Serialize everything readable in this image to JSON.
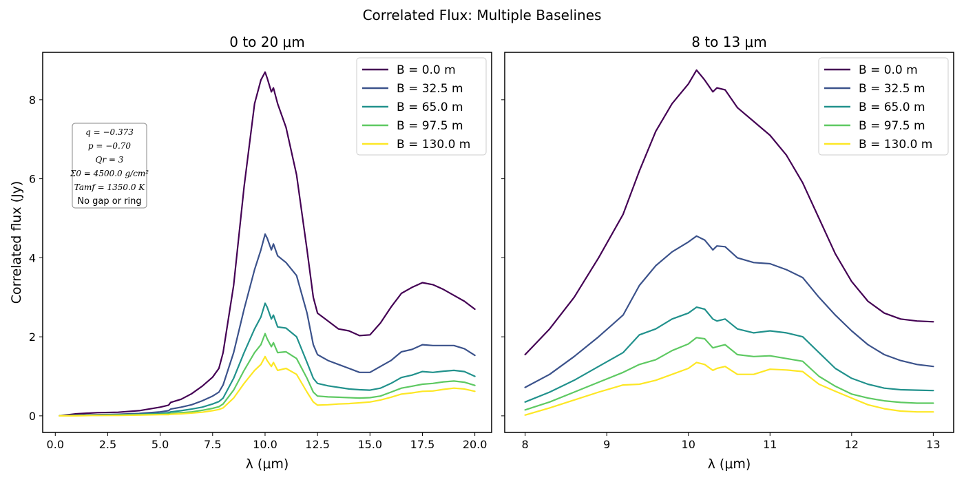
{
  "figure": {
    "suptitle": "Correlated Flux: Multiple Baselines"
  },
  "colors": {
    "series": [
      "#440154",
      "#3b528b",
      "#21918c",
      "#5ec962",
      "#fde725"
    ]
  },
  "chart_data": [
    {
      "type": "line",
      "title": "0 to 20 μm",
      "xlabel": "λ (μm)",
      "ylabel": "Correlated flux (Jy)",
      "xlim": [
        -0.6,
        20.8
      ],
      "ylim": [
        -0.42,
        9.2
      ],
      "xticks": [
        0,
        2.5,
        5,
        7.5,
        10,
        12.5,
        15,
        17.5,
        20
      ],
      "xtick_labels": [
        "0.0",
        "2.5",
        "5.0",
        "7.5",
        "10.0",
        "12.5",
        "15.0",
        "17.5",
        "20.0"
      ],
      "yticks": [
        0,
        2,
        4,
        6,
        8
      ],
      "ytick_labels": [
        "0",
        "2",
        "4",
        "6",
        "8"
      ],
      "legend_position": "top-right",
      "annotation": [
        "q = −0.373",
        "p = −0.70",
        "Qr = 3",
        "Σ0 = 4500.0 g/cm²",
        "Tamf = 1350.0 K",
        "No gap or ring"
      ],
      "series": [
        {
          "name": "B = 0.0 m",
          "x": [
            0.2,
            1,
            2,
            3,
            4,
            5,
            5.4,
            5.5,
            6,
            6.5,
            7,
            7.5,
            7.8,
            8,
            8.5,
            9,
            9.5,
            9.8,
            10,
            10.1,
            10.3,
            10.4,
            10.6,
            11,
            11.5,
            12,
            12.3,
            12.5,
            13,
            13.5,
            14,
            14.5,
            15,
            15.5,
            16,
            16.5,
            17,
            17.5,
            18,
            18.5,
            19,
            19.5,
            20
          ],
          "y": [
            0,
            0.05,
            0.08,
            0.09,
            0.13,
            0.22,
            0.27,
            0.34,
            0.42,
            0.56,
            0.75,
            0.98,
            1.2,
            1.6,
            3.3,
            5.8,
            7.9,
            8.5,
            8.7,
            8.55,
            8.2,
            8.3,
            7.9,
            7.3,
            6.1,
            4.2,
            3.0,
            2.6,
            2.4,
            2.2,
            2.15,
            2.03,
            2.05,
            2.35,
            2.75,
            3.1,
            3.25,
            3.37,
            3.32,
            3.2,
            3.05,
            2.9,
            2.7
          ]
        },
        {
          "name": "B = 32.5 m",
          "x": [
            0.2,
            1,
            2,
            3,
            4,
            5,
            5.4,
            5.5,
            6,
            6.5,
            7,
            7.5,
            7.8,
            8,
            8.5,
            9,
            9.5,
            9.8,
            10,
            10.1,
            10.3,
            10.4,
            10.6,
            11,
            11.5,
            12,
            12.3,
            12.5,
            13,
            13.5,
            14,
            14.5,
            15,
            15.5,
            16,
            16.5,
            17,
            17.5,
            18,
            18.5,
            19,
            19.5,
            20
          ],
          "y": [
            0,
            0.02,
            0.03,
            0.04,
            0.06,
            0.1,
            0.13,
            0.17,
            0.22,
            0.28,
            0.38,
            0.5,
            0.6,
            0.78,
            1.6,
            2.7,
            3.7,
            4.2,
            4.6,
            4.5,
            4.2,
            4.35,
            4.05,
            3.88,
            3.55,
            2.6,
            1.8,
            1.55,
            1.4,
            1.3,
            1.2,
            1.1,
            1.1,
            1.25,
            1.4,
            1.62,
            1.68,
            1.8,
            1.78,
            1.78,
            1.78,
            1.7,
            1.53
          ]
        },
        {
          "name": "B = 65.0 m",
          "x": [
            0.2,
            1,
            2,
            3,
            4,
            5,
            5.4,
            5.5,
            6,
            6.5,
            7,
            7.5,
            7.8,
            8,
            8.5,
            9,
            9.5,
            9.8,
            10,
            10.1,
            10.3,
            10.4,
            10.6,
            11,
            11.5,
            12,
            12.3,
            12.5,
            13,
            13.5,
            14,
            14.5,
            15,
            15.5,
            16,
            16.5,
            17,
            17.5,
            18,
            18.5,
            19,
            19.5,
            20
          ],
          "y": [
            0,
            0.01,
            0.02,
            0.03,
            0.04,
            0.06,
            0.08,
            0.1,
            0.13,
            0.17,
            0.22,
            0.3,
            0.36,
            0.45,
            0.95,
            1.6,
            2.2,
            2.5,
            2.85,
            2.75,
            2.45,
            2.55,
            2.25,
            2.22,
            2.0,
            1.35,
            0.95,
            0.82,
            0.76,
            0.72,
            0.68,
            0.66,
            0.65,
            0.7,
            0.82,
            0.97,
            1.03,
            1.12,
            1.1,
            1.13,
            1.15,
            1.12,
            1.0
          ]
        },
        {
          "name": "B = 97.5 m",
          "x": [
            0.2,
            1,
            2,
            3,
            4,
            5,
            5.4,
            5.5,
            6,
            6.5,
            7,
            7.5,
            7.8,
            8,
            8.5,
            9,
            9.5,
            9.8,
            10,
            10.1,
            10.3,
            10.4,
            10.6,
            11,
            11.5,
            12,
            12.3,
            12.5,
            13,
            13.5,
            14,
            14.5,
            15,
            15.5,
            16,
            16.5,
            17,
            17.5,
            18,
            18.5,
            19,
            19.5,
            20
          ],
          "y": [
            0,
            0.01,
            0.01,
            0.02,
            0.03,
            0.04,
            0.05,
            0.06,
            0.08,
            0.1,
            0.14,
            0.19,
            0.23,
            0.3,
            0.65,
            1.15,
            1.6,
            1.8,
            2.08,
            1.95,
            1.75,
            1.85,
            1.6,
            1.62,
            1.45,
            0.95,
            0.6,
            0.5,
            0.48,
            0.47,
            0.46,
            0.45,
            0.46,
            0.5,
            0.6,
            0.7,
            0.75,
            0.8,
            0.82,
            0.86,
            0.88,
            0.85,
            0.77
          ]
        },
        {
          "name": "B = 130.0 m",
          "x": [
            0.2,
            1,
            2,
            3,
            4,
            5,
            5.4,
            5.5,
            6,
            6.5,
            7,
            7.5,
            7.8,
            8,
            8.5,
            9,
            9.5,
            9.8,
            10,
            10.1,
            10.3,
            10.4,
            10.6,
            11,
            11.5,
            12,
            12.3,
            12.5,
            13,
            13.5,
            14,
            14.5,
            15,
            15.5,
            16,
            16.5,
            17,
            17.5,
            18,
            18.5,
            19,
            19.5,
            20
          ],
          "y": [
            0,
            0,
            0.01,
            0.01,
            0.02,
            0.03,
            0.03,
            0.04,
            0.05,
            0.07,
            0.09,
            0.13,
            0.16,
            0.2,
            0.45,
            0.82,
            1.15,
            1.3,
            1.5,
            1.4,
            1.25,
            1.35,
            1.15,
            1.2,
            1.05,
            0.6,
            0.35,
            0.27,
            0.28,
            0.3,
            0.31,
            0.33,
            0.35,
            0.4,
            0.47,
            0.55,
            0.58,
            0.62,
            0.63,
            0.67,
            0.7,
            0.68,
            0.62
          ]
        }
      ]
    },
    {
      "type": "line",
      "title": "8 to 13 μm",
      "xlabel": "λ (μm)",
      "ylabel": "",
      "xlim": [
        7.75,
        13.25
      ],
      "ylim": [
        -0.42,
        9.2
      ],
      "xticks": [
        8,
        9,
        10,
        11,
        12,
        13
      ],
      "xtick_labels": [
        "8",
        "9",
        "10",
        "11",
        "12",
        "13"
      ],
      "yticks": [
        0,
        2,
        4,
        6,
        8
      ],
      "ytick_labels": [],
      "legend_position": "top-right",
      "series": [
        {
          "name": "B = 0.0 m",
          "x": [
            8,
            8.3,
            8.6,
            8.9,
            9.2,
            9.4,
            9.6,
            9.8,
            10,
            10.1,
            10.2,
            10.3,
            10.35,
            10.45,
            10.6,
            10.8,
            11,
            11.2,
            11.4,
            11.6,
            11.8,
            12,
            12.2,
            12.4,
            12.6,
            12.8,
            13
          ],
          "y": [
            1.55,
            2.2,
            3.0,
            4.0,
            5.1,
            6.2,
            7.2,
            7.9,
            8.4,
            8.75,
            8.5,
            8.2,
            8.3,
            8.25,
            7.8,
            7.45,
            7.1,
            6.6,
            5.9,
            5.0,
            4.1,
            3.4,
            2.9,
            2.6,
            2.45,
            2.4,
            2.38
          ]
        },
        {
          "name": "B = 32.5 m",
          "x": [
            8,
            8.3,
            8.6,
            8.9,
            9.2,
            9.4,
            9.6,
            9.8,
            10,
            10.1,
            10.2,
            10.3,
            10.35,
            10.45,
            10.6,
            10.8,
            11,
            11.2,
            11.4,
            11.6,
            11.8,
            12,
            12.2,
            12.4,
            12.6,
            12.8,
            13
          ],
          "y": [
            0.72,
            1.05,
            1.5,
            2.0,
            2.55,
            3.3,
            3.8,
            4.15,
            4.4,
            4.55,
            4.45,
            4.2,
            4.3,
            4.28,
            4.0,
            3.88,
            3.85,
            3.7,
            3.5,
            3.0,
            2.55,
            2.15,
            1.8,
            1.55,
            1.4,
            1.3,
            1.25
          ]
        },
        {
          "name": "B = 65.0 m",
          "x": [
            8,
            8.3,
            8.6,
            8.9,
            9.2,
            9.4,
            9.6,
            9.8,
            10,
            10.1,
            10.2,
            10.3,
            10.35,
            10.45,
            10.6,
            10.8,
            11,
            11.2,
            11.4,
            11.6,
            11.8,
            12,
            12.2,
            12.4,
            12.6,
            12.8,
            13
          ],
          "y": [
            0.35,
            0.6,
            0.9,
            1.25,
            1.6,
            2.05,
            2.2,
            2.45,
            2.6,
            2.75,
            2.7,
            2.45,
            2.4,
            2.45,
            2.2,
            2.1,
            2.15,
            2.1,
            2.0,
            1.6,
            1.2,
            0.95,
            0.8,
            0.7,
            0.66,
            0.65,
            0.64
          ]
        },
        {
          "name": "B = 97.5 m",
          "x": [
            8,
            8.3,
            8.6,
            8.9,
            9.2,
            9.4,
            9.6,
            9.8,
            10,
            10.1,
            10.2,
            10.3,
            10.35,
            10.45,
            10.6,
            10.8,
            11,
            11.2,
            11.4,
            11.6,
            11.8,
            12,
            12.2,
            12.4,
            12.6,
            12.8,
            13
          ],
          "y": [
            0.15,
            0.35,
            0.6,
            0.85,
            1.1,
            1.3,
            1.42,
            1.65,
            1.82,
            1.98,
            1.95,
            1.72,
            1.75,
            1.8,
            1.55,
            1.5,
            1.52,
            1.45,
            1.38,
            1.0,
            0.75,
            0.55,
            0.45,
            0.38,
            0.34,
            0.32,
            0.32
          ]
        },
        {
          "name": "B = 130.0 m",
          "x": [
            8,
            8.3,
            8.6,
            8.9,
            9.2,
            9.4,
            9.6,
            9.8,
            10,
            10.1,
            10.2,
            10.3,
            10.35,
            10.45,
            10.6,
            10.8,
            11,
            11.2,
            11.4,
            11.6,
            11.8,
            12,
            12.2,
            12.4,
            12.6,
            12.8,
            13
          ],
          "y": [
            0.02,
            0.2,
            0.4,
            0.6,
            0.78,
            0.8,
            0.9,
            1.05,
            1.2,
            1.35,
            1.3,
            1.15,
            1.2,
            1.25,
            1.05,
            1.05,
            1.18,
            1.16,
            1.12,
            0.8,
            0.62,
            0.45,
            0.28,
            0.18,
            0.12,
            0.1,
            0.1
          ]
        }
      ]
    }
  ]
}
